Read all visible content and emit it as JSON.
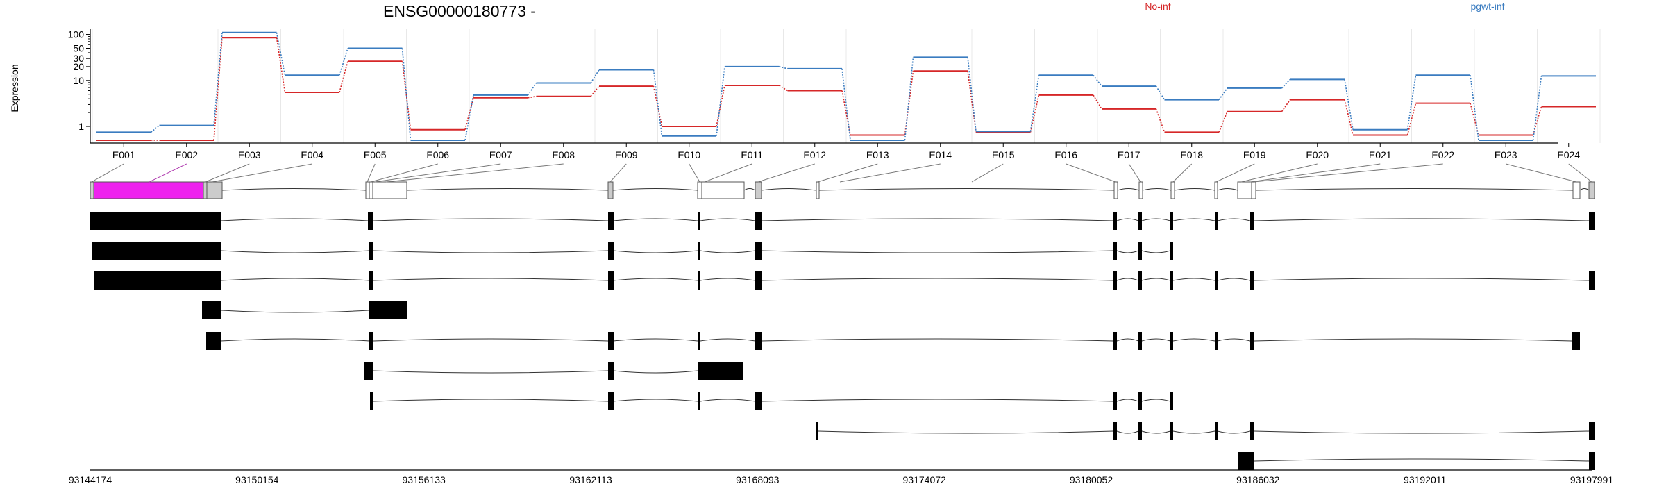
{
  "figure": {
    "title": "ENSG00000180773 -",
    "ylabel": "Expression"
  },
  "chart_data": {
    "type": "line",
    "title": "ENSG00000180773 -",
    "ylabel": "Expression",
    "yscale": "log",
    "ylim": [
      0.5,
      130
    ],
    "yticks": [
      "1",
      "10",
      "20",
      "30",
      "50",
      "100"
    ],
    "grid": false,
    "legend_placement": "top-right",
    "categories": [
      "E001",
      "E002",
      "E003",
      "E004",
      "E005",
      "E006",
      "E007",
      "E008",
      "E009",
      "E010",
      "E011",
      "E012",
      "E013",
      "E014",
      "E015",
      "E016",
      "E017",
      "E018",
      "E019",
      "E020",
      "E021",
      "E022",
      "E023",
      "E024"
    ],
    "series": [
      {
        "name": "No-inf",
        "color": "#d62728",
        "values": [
          0.5,
          0.5,
          85,
          5.5,
          26,
          0.85,
          4.2,
          4.5,
          7.5,
          1.0,
          7.8,
          6.0,
          0.65,
          16,
          0.75,
          4.8,
          2.4,
          0.75,
          2.1,
          3.8,
          0.65,
          3.2,
          0.65,
          2.7
        ]
      },
      {
        "name": "pgwt-inf",
        "color": "#3a7cc0",
        "values": [
          0.75,
          1.05,
          110,
          13,
          50,
          0.5,
          4.8,
          8.8,
          17,
          0.62,
          20,
          18,
          0.5,
          32,
          0.78,
          13,
          7.5,
          3.8,
          6.8,
          10.5,
          0.85,
          13,
          0.5,
          12.5
        ]
      }
    ]
  },
  "gene_model": {
    "genomic_ticks": [
      "93144174",
      "93150154",
      "93156133",
      "93162113",
      "93168093",
      "93174072",
      "93180052",
      "93186032",
      "93192011",
      "93197991"
    ]
  }
}
